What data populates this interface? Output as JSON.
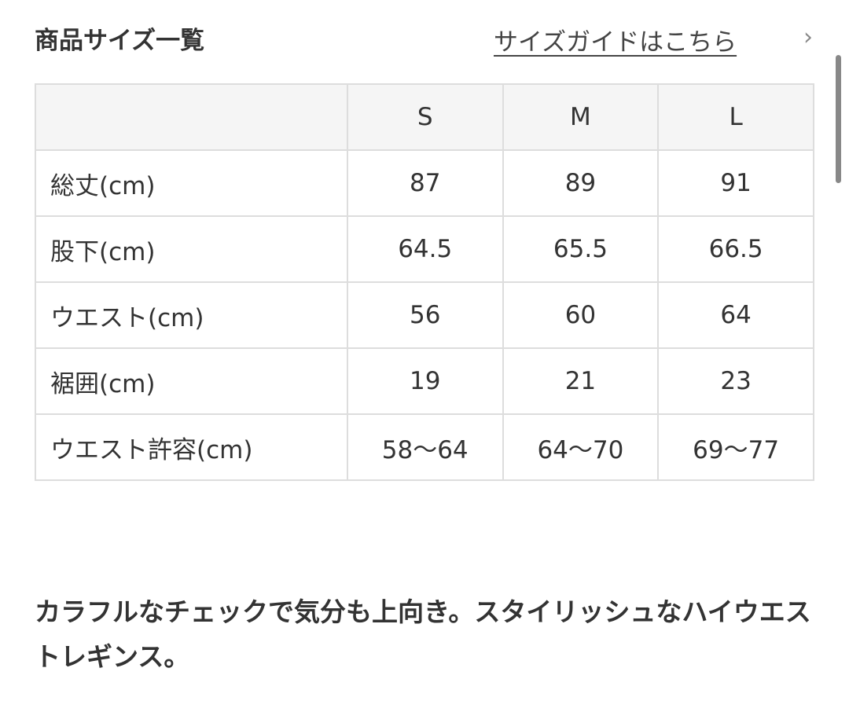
{
  "header": {
    "title": "商品サイズ一覧",
    "guide_link": "サイズガイドはこちら",
    "chevron": "›"
  },
  "table": {
    "columns": [
      "",
      "S",
      "M",
      "L"
    ],
    "rows": [
      {
        "label": "総丈(cm)",
        "values": [
          "87",
          "89",
          "91"
        ]
      },
      {
        "label": "股下(cm)",
        "values": [
          "64.5",
          "65.5",
          "66.5"
        ]
      },
      {
        "label": "ウエスト(cm)",
        "values": [
          "56",
          "60",
          "64"
        ]
      },
      {
        "label": "裾囲(cm)",
        "values": [
          "19",
          "21",
          "23"
        ]
      },
      {
        "label": "ウエスト許容(cm)",
        "values": [
          "58〜64",
          "64〜70",
          "69〜77"
        ]
      }
    ]
  },
  "description": "カラフルなチェックで気分も上向き。スタイリッシュなハイウエストレギンス。"
}
